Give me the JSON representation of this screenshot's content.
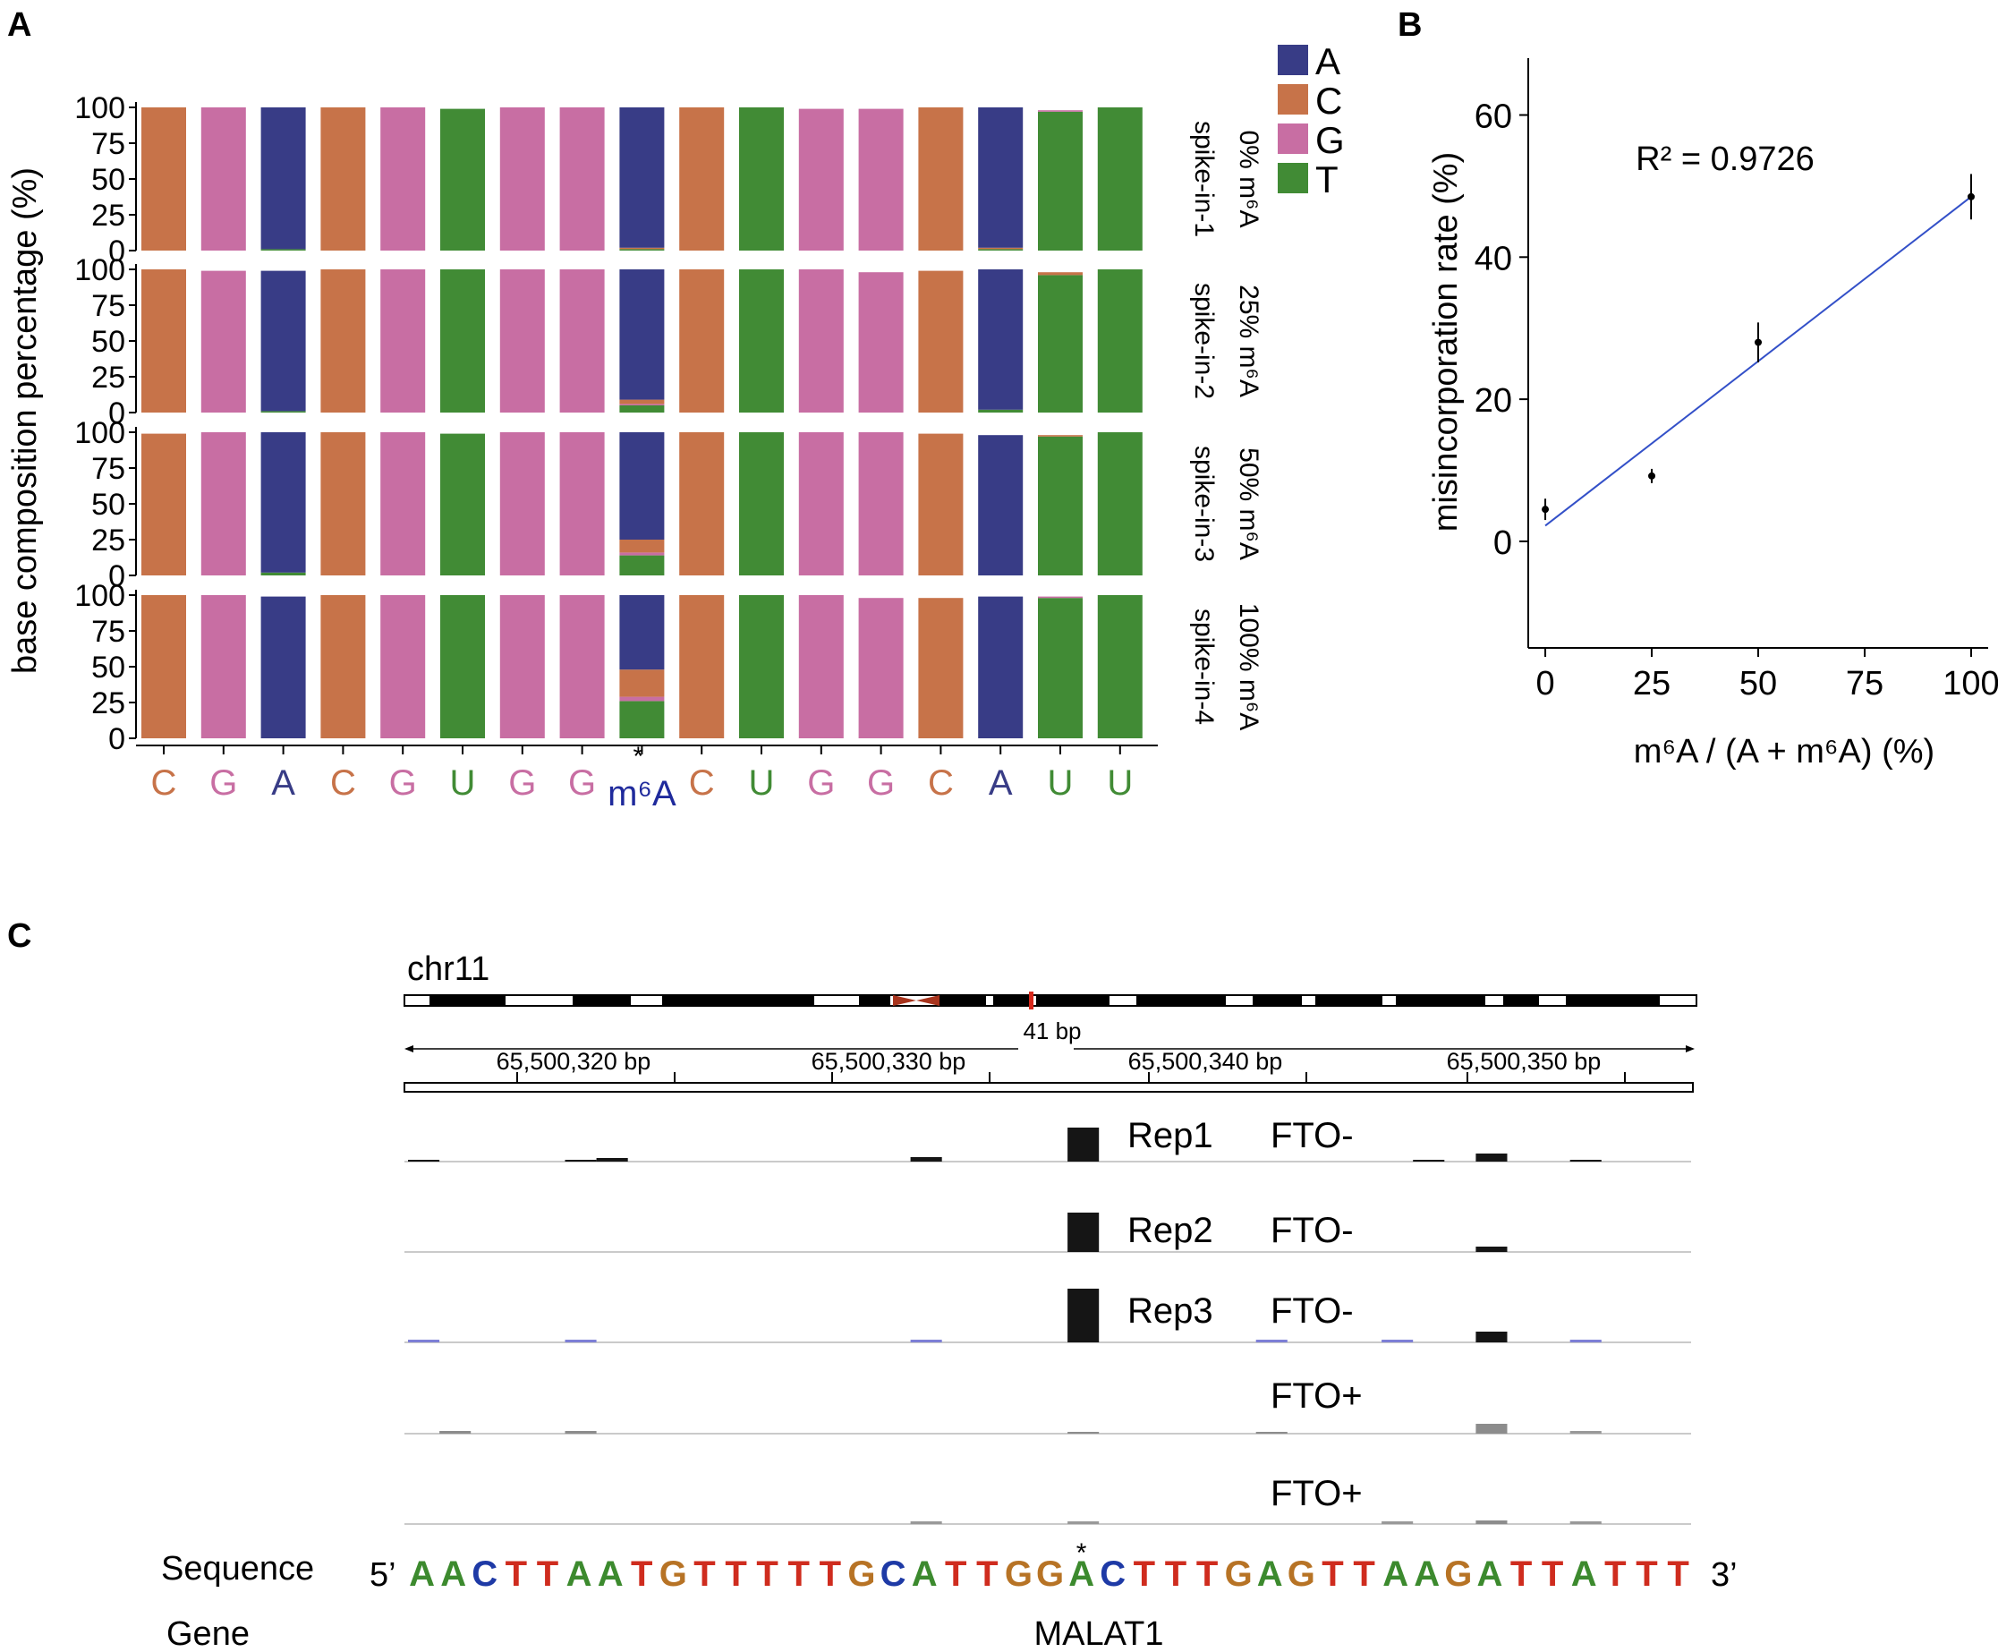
{
  "panel_labels": {
    "a": "A",
    "b": "B",
    "c": "C"
  },
  "colors": {
    "A": "#383c86",
    "C": "#c77349",
    "G": "#c86ea3",
    "T": "#418b35",
    "U": "#418b35",
    "m6A": "#1f2a9c"
  },
  "chart_data": [
    {
      "type": "bar",
      "panel": "A",
      "ylabel": "base composition percentage (%)",
      "ytick_labels": [
        "0",
        "25",
        "50",
        "75",
        "100"
      ],
      "ylim": [
        0,
        100
      ],
      "legend": [
        "A",
        "C",
        "G",
        "T"
      ],
      "legend_placement": "top-right",
      "base_order": [
        "A",
        "C",
        "G",
        "T"
      ],
      "categories": [
        "C",
        "G",
        "A",
        "C",
        "G",
        "U",
        "G",
        "G",
        "m6A",
        "C",
        "U",
        "G",
        "G",
        "C",
        "A",
        "U",
        "U"
      ],
      "category_labels": [
        "C",
        "G",
        "A",
        "C",
        "G",
        "U",
        "G",
        "G",
        "m⁶A",
        "C",
        "U",
        "G",
        "G",
        "C",
        "A",
        "U",
        "U"
      ],
      "star": "*",
      "facets": [
        {
          "name": "spike-in-1",
          "label": "0% m⁶A",
          "compositions": [
            [
              0,
              100,
              0,
              0
            ],
            [
              0,
              0,
              100,
              0
            ],
            [
              99,
              0,
              0,
              1
            ],
            [
              0,
              100,
              0,
              0
            ],
            [
              0,
              0,
              100,
              0
            ],
            [
              0,
              0,
              0,
              99
            ],
            [
              0,
              0,
              100,
              0
            ],
            [
              0,
              0,
              100,
              0
            ],
            [
              98,
              1,
              0,
              1
            ],
            [
              0,
              100,
              0,
              0
            ],
            [
              0,
              0,
              0,
              100
            ],
            [
              0,
              0,
              99,
              0
            ],
            [
              0,
              0,
              99,
              0
            ],
            [
              0,
              100,
              0,
              0
            ],
            [
              98,
              1,
              0,
              1
            ],
            [
              0,
              0,
              1,
              97
            ],
            [
              0,
              0,
              0,
              100
            ]
          ]
        },
        {
          "name": "spike-in-2",
          "label": "25% m⁶A",
          "compositions": [
            [
              0,
              100,
              0,
              0
            ],
            [
              0,
              0,
              99,
              0
            ],
            [
              98,
              0,
              0,
              1
            ],
            [
              0,
              100,
              0,
              0
            ],
            [
              0,
              0,
              100,
              0
            ],
            [
              0,
              0,
              0,
              100
            ],
            [
              0,
              0,
              100,
              0
            ],
            [
              0,
              0,
              100,
              0
            ],
            [
              91,
              3,
              1,
              5
            ],
            [
              0,
              100,
              0,
              0
            ],
            [
              0,
              0,
              0,
              100
            ],
            [
              0,
              0,
              100,
              0
            ],
            [
              0,
              0,
              98,
              0
            ],
            [
              0,
              99,
              0,
              0
            ],
            [
              98,
              0,
              0,
              2
            ],
            [
              0,
              2,
              0,
              96
            ],
            [
              0,
              0,
              0,
              100
            ]
          ]
        },
        {
          "name": "spike-in-3",
          "label": "50% m⁶A",
          "compositions": [
            [
              0,
              99,
              0,
              0
            ],
            [
              0,
              0,
              100,
              0
            ],
            [
              98,
              0,
              0,
              2
            ],
            [
              0,
              100,
              0,
              0
            ],
            [
              0,
              0,
              100,
              0
            ],
            [
              0,
              0,
              0,
              99
            ],
            [
              0,
              0,
              100,
              0
            ],
            [
              0,
              0,
              100,
              0
            ],
            [
              75,
              9,
              2,
              14
            ],
            [
              0,
              100,
              0,
              0
            ],
            [
              0,
              0,
              0,
              100
            ],
            [
              0,
              0,
              100,
              0
            ],
            [
              0,
              0,
              100,
              0
            ],
            [
              0,
              99,
              0,
              0
            ],
            [
              98,
              0,
              0,
              0
            ],
            [
              0,
              1,
              0,
              97
            ],
            [
              0,
              0,
              0,
              100
            ]
          ]
        },
        {
          "name": "spike-in-4",
          "label": "100% m⁶A",
          "compositions": [
            [
              0,
              100,
              0,
              0
            ],
            [
              0,
              0,
              100,
              0
            ],
            [
              99,
              0,
              0,
              0
            ],
            [
              0,
              100,
              0,
              0
            ],
            [
              0,
              0,
              100,
              0
            ],
            [
              0,
              0,
              0,
              100
            ],
            [
              0,
              0,
              100,
              0
            ],
            [
              0,
              0,
              100,
              0
            ],
            [
              52,
              19,
              3,
              26
            ],
            [
              0,
              100,
              0,
              0
            ],
            [
              0,
              0,
              0,
              100
            ],
            [
              0,
              0,
              100,
              0
            ],
            [
              0,
              0,
              98,
              0
            ],
            [
              0,
              98,
              0,
              0
            ],
            [
              99,
              0,
              0,
              0
            ],
            [
              0,
              0,
              1,
              98
            ],
            [
              0,
              0,
              0,
              100
            ]
          ]
        }
      ]
    },
    {
      "type": "scatter",
      "panel": "B",
      "xlabel": "m⁶A / (A + m⁶A) (%)",
      "ylabel": "misincorporation rate (%)",
      "x": [
        0,
        25,
        50,
        100
      ],
      "y": [
        4.5,
        9.2,
        28,
        48.5
      ],
      "err": [
        1.5,
        1.0,
        2.8,
        3.2
      ],
      "fit": {
        "slope": 0.463,
        "intercept": 2.2
      },
      "annotation": "R² = 0.9726",
      "xticks": [
        0,
        25,
        50,
        75,
        100
      ],
      "yticks": [
        0,
        20,
        40,
        60
      ],
      "xlim": [
        -4,
        104
      ],
      "ylim": [
        -15,
        68
      ],
      "fit_color": "#3350c8"
    },
    {
      "type": "bar",
      "panel": "C",
      "chromosome": "chr11",
      "window_label": "41 bp",
      "coord_ticks": [
        "65,500,320 bp",
        "65,500,330 bp",
        "65,500,340 bp",
        "65,500,350 bp"
      ],
      "window_start": 65500314,
      "window_end": 65500354,
      "tracks": [
        {
          "label": "Rep1",
          "condition": "FTO-",
          "color": "#151515",
          "bars": [
            {
              "pos": 1,
              "v": 2
            },
            {
              "pos": 6,
              "v": 2
            },
            {
              "pos": 7,
              "v": 4
            },
            {
              "pos": 17,
              "v": 5
            },
            {
              "pos": 22,
              "v": 38
            },
            {
              "pos": 33,
              "v": 2
            },
            {
              "pos": 35,
              "v": 9
            },
            {
              "pos": 38,
              "v": 2
            }
          ]
        },
        {
          "label": "Rep2",
          "condition": "FTO-",
          "color": "#151515",
          "bars": [
            {
              "pos": 22,
              "v": 44
            },
            {
              "pos": 35,
              "v": 6
            }
          ]
        },
        {
          "label": "Rep3",
          "condition": "FTO-",
          "color": "#151515",
          "bars": [
            {
              "pos": 1,
              "v": 1
            },
            {
              "pos": 6,
              "v": 1
            },
            {
              "pos": 17,
              "v": 1
            },
            {
              "pos": 22,
              "v": 60
            },
            {
              "pos": 28,
              "v": 1
            },
            {
              "pos": 32,
              "v": 1
            },
            {
              "pos": 35,
              "v": 12
            },
            {
              "pos": 38,
              "v": 1
            }
          ]
        },
        {
          "label": "",
          "condition": "FTO+",
          "color": "#8c8c8c",
          "bars": [
            {
              "pos": 2,
              "v": 3
            },
            {
              "pos": 6,
              "v": 3
            },
            {
              "pos": 22,
              "v": 2
            },
            {
              "pos": 28,
              "v": 2
            },
            {
              "pos": 35,
              "v": 11
            },
            {
              "pos": 38,
              "v": 1
            }
          ]
        },
        {
          "label": "",
          "condition": "FTO+",
          "color": "#8c8c8c",
          "bars": [
            {
              "pos": 17,
              "v": 1
            },
            {
              "pos": 22,
              "v": 1
            },
            {
              "pos": 32,
              "v": 1
            },
            {
              "pos": 35,
              "v": 4
            },
            {
              "pos": 38,
              "v": 1
            }
          ]
        }
      ],
      "sequence_label": "Sequence",
      "five_prime": "5’",
      "three_prime": "3’",
      "sequence": "AACTTAATGTTTTTGCATTGGACTTTGAGTTAAGATTATTT",
      "star": "*",
      "gene_label": "Gene",
      "gene": "MALAT1",
      "seq_colors": {
        "A": "#3c8a2e",
        "C": "#1e3aa6",
        "G": "#b77325",
        "T": "#cf2c1e"
      }
    }
  ]
}
